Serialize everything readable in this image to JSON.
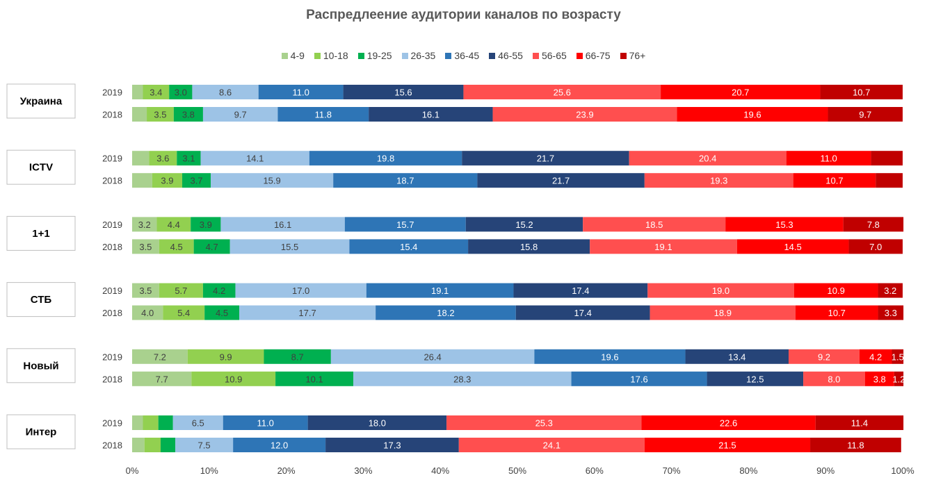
{
  "chart_data": {
    "type": "bar",
    "orientation": "horizontal-stacked-100",
    "title": "Распредлеение аудитории каналов по возрасту",
    "legend_position": "top",
    "categories_x_ticks": [
      "0%",
      "10%",
      "20%",
      "30%",
      "40%",
      "50%",
      "60%",
      "70%",
      "80%",
      "90%",
      "100%"
    ],
    "xlim": [
      0,
      100
    ],
    "series": [
      {
        "name": "4-9",
        "color": "#a9d18e"
      },
      {
        "name": "10-18",
        "color": "#92d050"
      },
      {
        "name": "19-25",
        "color": "#00b050"
      },
      {
        "name": "26-35",
        "color": "#9dc3e6"
      },
      {
        "name": "36-45",
        "color": "#2e75b6"
      },
      {
        "name": "46-55",
        "color": "#264478"
      },
      {
        "name": "56-65",
        "color": "#ff4f4f"
      },
      {
        "name": "66-75",
        "color": "#ff0000"
      },
      {
        "name": "76+",
        "color": "#c00000"
      }
    ],
    "groups": [
      {
        "label": "Украина",
        "rows": [
          {
            "year": "2019",
            "values": [
              1.4,
              3.4,
              3.0,
              8.6,
              11.0,
              15.6,
              25.6,
              20.7,
              10.7
            ],
            "labels": [
              "",
              "3.4",
              "3.0",
              "8.6",
              "11.0",
              "15.6",
              "25.6",
              "20.7",
              "10.7"
            ]
          },
          {
            "year": "2018",
            "values": [
              1.9,
              3.5,
              3.8,
              9.7,
              11.8,
              16.1,
              23.9,
              19.6,
              9.7
            ],
            "labels": [
              "",
              "3.5",
              "3.8",
              "9.7",
              "11.8",
              "16.1",
              "23.9",
              "19.6",
              "9.7"
            ]
          }
        ]
      },
      {
        "label": "ICTV",
        "rows": [
          {
            "year": "2019",
            "values": [
              2.2,
              3.6,
              3.1,
              14.1,
              19.8,
              21.7,
              20.4,
              11.0,
              4.1
            ],
            "labels": [
              "",
              "3.6",
              "3.1",
              "14.1",
              "19.8",
              "21.7",
              "20.4",
              "11.0",
              ""
            ]
          },
          {
            "year": "2018",
            "values": [
              2.6,
              3.9,
              3.7,
              15.9,
              18.7,
              21.7,
              19.3,
              10.7,
              3.5
            ],
            "labels": [
              "",
              "3.9",
              "3.7",
              "15.9",
              "18.7",
              "21.7",
              "19.3",
              "10.7",
              ""
            ]
          }
        ]
      },
      {
        "label": "1+1",
        "rows": [
          {
            "year": "2019",
            "values": [
              3.2,
              4.4,
              3.9,
              16.1,
              15.7,
              15.2,
              18.5,
              15.3,
              7.8
            ],
            "labels": [
              "3.2",
              "4.4",
              "3.9",
              "16.1",
              "15.7",
              "15.2",
              "18.5",
              "15.3",
              "7.8"
            ]
          },
          {
            "year": "2018",
            "values": [
              3.5,
              4.5,
              4.7,
              15.5,
              15.4,
              15.8,
              19.1,
              14.5,
              7.0
            ],
            "labels": [
              "3.5",
              "4.5",
              "4.7",
              "15.5",
              "15.4",
              "15.8",
              "19.1",
              "14.5",
              "7.0"
            ]
          }
        ]
      },
      {
        "label": "СТБ",
        "rows": [
          {
            "year": "2019",
            "values": [
              3.5,
              5.7,
              4.2,
              17.0,
              19.1,
              17.4,
              19.0,
              10.9,
              3.2
            ],
            "labels": [
              "3.5",
              "5.7",
              "4.2",
              "17.0",
              "19.1",
              "17.4",
              "19.0",
              "10.9",
              "3.2"
            ]
          },
          {
            "year": "2018",
            "values": [
              4.0,
              5.4,
              4.5,
              17.7,
              18.2,
              17.4,
              18.9,
              10.7,
              3.3
            ],
            "labels": [
              "4.0",
              "5.4",
              "4.5",
              "17.7",
              "18.2",
              "17.4",
              "18.9",
              "10.7",
              "3.3"
            ]
          }
        ]
      },
      {
        "label": "Новый",
        "rows": [
          {
            "year": "2019",
            "values": [
              7.2,
              9.9,
              8.7,
              26.4,
              19.6,
              13.4,
              9.2,
              4.2,
              1.5
            ],
            "labels": [
              "7.2",
              "9.9",
              "8.7",
              "26.4",
              "19.6",
              "13.4",
              "9.2",
              "4.2",
              "1.5"
            ]
          },
          {
            "year": "2018",
            "values": [
              7.7,
              10.9,
              10.1,
              28.3,
              17.6,
              12.5,
              8.0,
              3.8,
              1.2
            ],
            "labels": [
              "7.7",
              "10.9",
              "10.1",
              "28.3",
              "17.6",
              "12.5",
              "8.0",
              "3.8",
              "1.2"
            ]
          }
        ]
      },
      {
        "label": "Интер",
        "rows": [
          {
            "year": "2019",
            "values": [
              1.4,
              2.0,
              1.9,
              6.5,
              11.0,
              18.0,
              25.3,
              22.6,
              11.4
            ],
            "labels": [
              "",
              "",
              "",
              "6.5",
              "11.0",
              "18.0",
              "25.3",
              "22.6",
              "11.4"
            ]
          },
          {
            "year": "2018",
            "values": [
              1.6,
              2.1,
              1.9,
              7.5,
              12.0,
              17.3,
              24.1,
              21.5,
              11.8
            ],
            "labels": [
              "",
              "",
              "",
              "7.5",
              "12.0",
              "17.3",
              "24.1",
              "21.5",
              "11.8"
            ]
          }
        ]
      }
    ]
  }
}
